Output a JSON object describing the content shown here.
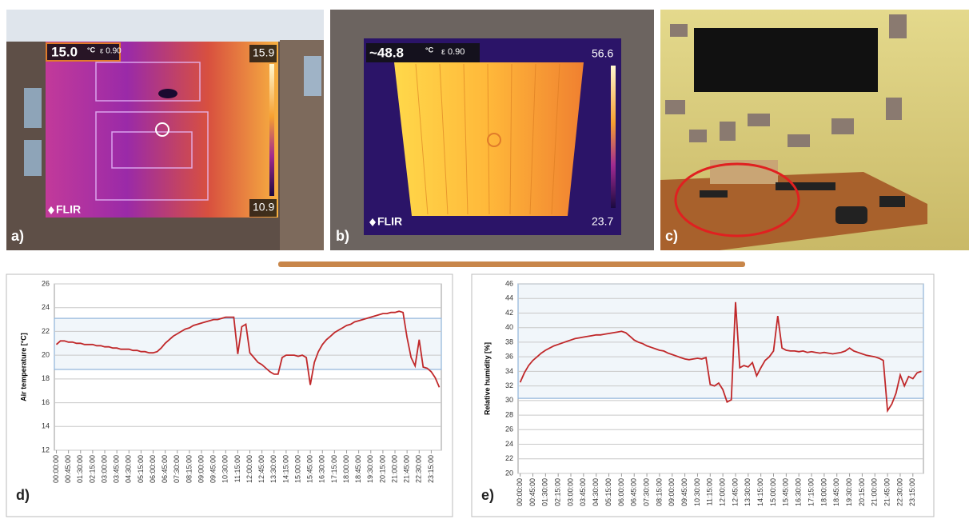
{
  "panels": [
    {
      "label": "a)",
      "readout": "15.0",
      "unit": "°C",
      "emissivity": "ε 0.90",
      "scale_max": "15.9",
      "scale_min": "10.9",
      "brand": "FLIR"
    },
    {
      "label": "b)",
      "readout": "~48.8",
      "unit": "°C",
      "emissivity": "ε 0.90",
      "scale_max": "56.6",
      "scale_min": "23.7",
      "brand": "FLIR"
    },
    {
      "label": "c)"
    }
  ],
  "chart_data": [
    {
      "type": "line",
      "label": "d)",
      "y_label": "Air temperature [°C]",
      "color": "#c0282a",
      "band_color": "#8fb3d9",
      "ylim": [
        12,
        26
      ],
      "yticks": [
        12,
        14,
        16,
        18,
        20,
        22,
        24,
        26
      ],
      "grid": true,
      "band": [
        18.8,
        23.1
      ],
      "categories": [
        "00:00:00",
        null,
        null,
        "00:45:00",
        null,
        null,
        "01:30:00",
        null,
        null,
        "02:15:00",
        null,
        null,
        "03:00:00",
        null,
        null,
        "03:45:00",
        null,
        null,
        "04:30:00",
        null,
        null,
        "05:15:00",
        null,
        null,
        "06:00:00",
        null,
        null,
        "06:45:00",
        null,
        null,
        "07:30:00",
        null,
        null,
        "08:15:00",
        null,
        null,
        "09:00:00",
        null,
        null,
        "09:45:00",
        null,
        null,
        "10:30:00",
        null,
        null,
        "11:15:00",
        null,
        null,
        "12:00:00",
        null,
        null,
        "12:45:00",
        null,
        null,
        "13:30:00",
        null,
        null,
        "14:15:00",
        null,
        null,
        "15:00:00",
        null,
        null,
        "15:45:00",
        null,
        null,
        "16:30:00",
        null,
        null,
        "17:15:00",
        null,
        null,
        "18:00:00",
        null,
        null,
        "18:45:00",
        null,
        null,
        "19:30:00",
        null,
        null,
        "20:15:00",
        null,
        null,
        "21:00:00",
        null,
        null,
        "21:45:00",
        null,
        null,
        "22:30:00",
        null,
        null,
        "23:15:00",
        null,
        null
      ],
      "values": [
        20.9,
        21.2,
        21.2,
        21.1,
        21.1,
        21.0,
        21.0,
        20.9,
        20.9,
        20.9,
        20.8,
        20.8,
        20.7,
        20.7,
        20.6,
        20.6,
        20.5,
        20.5,
        20.5,
        20.4,
        20.4,
        20.3,
        20.3,
        20.2,
        20.2,
        20.3,
        20.6,
        21.0,
        21.3,
        21.6,
        21.8,
        22.0,
        22.2,
        22.3,
        22.5,
        22.6,
        22.7,
        22.8,
        22.9,
        23.0,
        23.0,
        23.1,
        23.2,
        23.2,
        23.2,
        20.1,
        22.4,
        22.6,
        20.2,
        19.8,
        19.4,
        19.2,
        18.9,
        18.6,
        18.4,
        18.4,
        19.8,
        20.0,
        20.0,
        20.0,
        19.9,
        20.0,
        19.8,
        17.5,
        19.4,
        20.3,
        20.9,
        21.3,
        21.6,
        21.9,
        22.1,
        22.3,
        22.5,
        22.6,
        22.8,
        22.9,
        23.0,
        23.1,
        23.2,
        23.3,
        23.4,
        23.5,
        23.5,
        23.6,
        23.6,
        23.7,
        23.6,
        21.5,
        19.8,
        19.1,
        21.3,
        19.0,
        18.9,
        18.6,
        18.1,
        17.3
      ]
    },
    {
      "type": "line",
      "label": "e)",
      "y_label": "Relative humidity [%]",
      "color": "#c0282a",
      "band_color": "#8fb3d9",
      "ylim": [
        20,
        46
      ],
      "yticks": [
        20,
        22,
        24,
        26,
        28,
        30,
        32,
        34,
        36,
        38,
        40,
        42,
        44,
        46
      ],
      "grid": true,
      "band": [
        30.3,
        46
      ],
      "categories": [
        "00:00:00",
        null,
        null,
        "00:45:00",
        null,
        null,
        "01:30:00",
        null,
        null,
        "02:15:00",
        null,
        null,
        "03:00:00",
        null,
        null,
        "03:45:00",
        null,
        null,
        "04:30:00",
        null,
        null,
        "05:15:00",
        null,
        null,
        "06:00:00",
        null,
        null,
        "06:45:00",
        null,
        null,
        "07:30:00",
        null,
        null,
        "08:15:00",
        null,
        null,
        "09:00:00",
        null,
        null,
        "09:45:00",
        null,
        null,
        "10:30:00",
        null,
        null,
        "11:15:00",
        null,
        null,
        "12:00:00",
        null,
        null,
        "12:45:00",
        null,
        null,
        "13:30:00",
        null,
        null,
        "14:15:00",
        null,
        null,
        "15:00:00",
        null,
        null,
        "15:45:00",
        null,
        null,
        "16:30:00",
        null,
        null,
        "17:15:00",
        null,
        null,
        "18:00:00",
        null,
        null,
        "18:45:00",
        null,
        null,
        "19:30:00",
        null,
        null,
        "20:15:00",
        null,
        null,
        "21:00:00",
        null,
        null,
        "21:45:00",
        null,
        null,
        "22:30:00",
        null,
        null,
        "23:15:00",
        null,
        null
      ],
      "values": [
        32.5,
        33.8,
        34.8,
        35.5,
        36.0,
        36.5,
        36.9,
        37.2,
        37.5,
        37.7,
        37.9,
        38.1,
        38.3,
        38.5,
        38.6,
        38.7,
        38.8,
        38.9,
        39.0,
        39.0,
        39.1,
        39.2,
        39.3,
        39.4,
        39.5,
        39.3,
        38.8,
        38.3,
        38.0,
        37.8,
        37.5,
        37.3,
        37.1,
        36.9,
        36.8,
        36.5,
        36.3,
        36.1,
        35.9,
        35.7,
        35.6,
        35.7,
        35.8,
        35.7,
        35.9,
        32.2,
        32.0,
        32.4,
        31.5,
        29.8,
        30.1,
        43.5,
        34.5,
        34.8,
        34.6,
        35.2,
        33.4,
        34.5,
        35.5,
        36.0,
        36.8,
        41.6,
        37.2,
        36.9,
        36.8,
        36.8,
        36.7,
        36.8,
        36.6,
        36.7,
        36.6,
        36.5,
        36.6,
        36.5,
        36.4,
        36.5,
        36.6,
        36.8,
        37.2,
        36.8,
        36.6,
        36.4,
        36.2,
        36.1,
        36.0,
        35.8,
        35.5,
        28.6,
        29.5,
        31.0,
        33.5,
        32.0,
        33.3,
        33.0,
        33.8,
        34.0
      ]
    }
  ]
}
